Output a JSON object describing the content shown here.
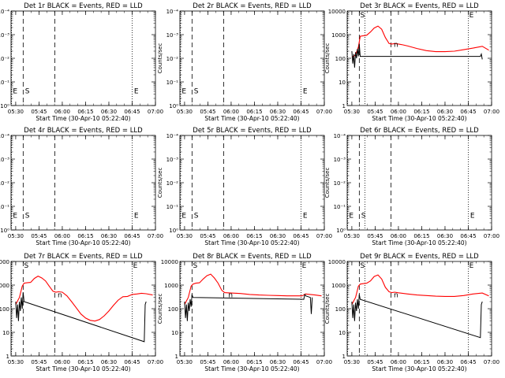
{
  "figure": {
    "x_axis_title": "Start Time (30-Apr-10 05:22:40)",
    "y_axis_title": "Counts/sec"
  },
  "colors": {
    "events": "#000000",
    "lld": "#ff0000",
    "background": "#ffffff",
    "axes": "#000000"
  },
  "chart_data": [
    {
      "type": "line",
      "title": "Det 1r BLACK = Events, RED = LLD",
      "xlabel": "Start Time (30-Apr-10 05:22:40)",
      "ylabel": "Counts/sec",
      "xlim": [
        5.45,
        7.0
      ],
      "ylim": [
        1,
        0.0001
      ],
      "yscale": "log",
      "x_ticks": [
        "05:30",
        "05:45",
        "06:00",
        "06:15",
        "06:30",
        "06:45",
        "07:00"
      ],
      "y_ticks": [
        "10⁰",
        "10⁻¹",
        "10⁻²",
        "10⁻³",
        "10⁻⁴"
      ],
      "vlines": [
        {
          "x": 5.58,
          "style": "dashed"
        },
        {
          "x": 5.92,
          "style": "dashed"
        },
        {
          "x": 6.75,
          "style": "dotted"
        },
        {
          "x": 5.455,
          "style": "dotted"
        }
      ],
      "markers": [
        {
          "label": "E",
          "x": 5.47,
          "y": 0.3
        },
        {
          "label": "S",
          "x": 5.6,
          "y": 0.3
        },
        {
          "label": "E",
          "x": 6.77,
          "y": 0.3
        }
      ],
      "series": []
    },
    {
      "type": "line",
      "title": "Det 2r BLACK = Events, RED = LLD",
      "xlabel": "Start Time (30-Apr-10 05:22:40)",
      "ylabel": "Counts/sec",
      "xlim": [
        5.45,
        7.0
      ],
      "ylim": [
        1,
        0.0001
      ],
      "yscale": "log",
      "x_ticks": [
        "05:30",
        "05:45",
        "06:00",
        "06:15",
        "06:30",
        "06:45",
        "07:00"
      ],
      "y_ticks": [
        "10⁰",
        "10⁻¹",
        "10⁻²",
        "10⁻³",
        "10⁻⁴"
      ],
      "vlines": [
        {
          "x": 5.58,
          "style": "dashed"
        },
        {
          "x": 5.92,
          "style": "dashed"
        },
        {
          "x": 6.75,
          "style": "dotted"
        },
        {
          "x": 5.455,
          "style": "dotted"
        }
      ],
      "markers": [
        {
          "label": "E",
          "x": 5.47,
          "y": 0.3
        },
        {
          "label": "S",
          "x": 5.6,
          "y": 0.3
        },
        {
          "label": "E",
          "x": 6.77,
          "y": 0.3
        }
      ],
      "series": []
    },
    {
      "type": "line",
      "title": "Det 3r BLACK = Events, RED = LLD",
      "xlabel": "Start Time (30-Apr-10 05:22:40)",
      "ylabel": "Counts/sec",
      "xlim": [
        5.45,
        7.0
      ],
      "ylim": [
        1,
        10000
      ],
      "yscale": "log",
      "x_ticks": [
        "05:30",
        "05:45",
        "06:00",
        "06:15",
        "06:30",
        "06:45",
        "07:00"
      ],
      "y_ticks": [
        "1",
        "10",
        "100",
        "1000",
        "10000"
      ],
      "vlines": [
        {
          "x": 5.58,
          "style": "dashed"
        },
        {
          "x": 5.92,
          "style": "dashed"
        },
        {
          "x": 6.75,
          "style": "dotted"
        },
        {
          "x": 5.455,
          "style": "dotted"
        },
        {
          "x": 5.64,
          "style": "dotted"
        }
      ],
      "markers": [
        {
          "label": "S",
          "x": 5.59,
          "y": 8000
        },
        {
          "label": "E",
          "x": 6.76,
          "y": 8000
        },
        {
          "label": "n",
          "x": 5.95,
          "y": 300
        }
      ],
      "series": [
        {
          "name": "LLD",
          "color": "lld",
          "x": [
            5.5,
            5.54,
            5.57,
            5.59,
            5.62,
            5.66,
            5.7,
            5.74,
            5.78,
            5.82,
            5.86,
            5.9,
            5.93,
            5.96,
            6.0,
            6.05,
            6.1,
            6.2,
            6.3,
            6.4,
            6.5,
            6.6,
            6.7,
            6.8,
            6.9,
            6.97
          ],
          "values": [
            110,
            140,
            300,
            850,
            900,
            950,
            1300,
            1900,
            2300,
            1700,
            750,
            420,
            400,
            420,
            400,
            370,
            330,
            260,
            210,
            190,
            190,
            200,
            230,
            270,
            320,
            220
          ]
        },
        {
          "name": "Events",
          "color": "events",
          "x": [
            5.5,
            5.51,
            5.52,
            5.53,
            5.54,
            5.55,
            5.56,
            5.57,
            5.58,
            5.59,
            6.88,
            6.89,
            6.9
          ],
          "values": [
            200,
            60,
            150,
            40,
            180,
            100,
            250,
            120,
            400,
            120,
            120,
            150,
            90
          ]
        }
      ]
    },
    {
      "type": "line",
      "title": "Det 4r BLACK = Events, RED = LLD",
      "xlabel": "Start Time (30-Apr-10 05:22:40)",
      "ylabel": "Counts/sec",
      "xlim": [
        5.45,
        7.0
      ],
      "ylim": [
        1,
        0.0001
      ],
      "yscale": "log",
      "x_ticks": [
        "05:30",
        "05:45",
        "06:00",
        "06:15",
        "06:30",
        "06:45",
        "07:00"
      ],
      "y_ticks": [
        "10⁰",
        "10⁻¹",
        "10⁻²",
        "10⁻³",
        "10⁻⁴"
      ],
      "vlines": [
        {
          "x": 5.58,
          "style": "dashed"
        },
        {
          "x": 5.92,
          "style": "dashed"
        },
        {
          "x": 6.75,
          "style": "dotted"
        },
        {
          "x": 5.455,
          "style": "dotted"
        }
      ],
      "markers": [
        {
          "label": "E",
          "x": 5.47,
          "y": 0.3
        },
        {
          "label": "S",
          "x": 5.6,
          "y": 0.3
        },
        {
          "label": "E",
          "x": 6.77,
          "y": 0.3
        }
      ],
      "series": []
    },
    {
      "type": "line",
      "title": "Det 5r BLACK = Events, RED = LLD",
      "xlabel": "Start Time (30-Apr-10 05:22:40)",
      "ylabel": "Counts/sec",
      "xlim": [
        5.45,
        7.0
      ],
      "ylim": [
        1,
        0.0001
      ],
      "yscale": "log",
      "x_ticks": [
        "05:30",
        "05:45",
        "06:00",
        "06:15",
        "06:30",
        "06:45",
        "07:00"
      ],
      "y_ticks": [
        "10⁰",
        "10⁻¹",
        "10⁻²",
        "10⁻³",
        "10⁻⁴"
      ],
      "vlines": [
        {
          "x": 5.58,
          "style": "dashed"
        },
        {
          "x": 5.92,
          "style": "dashed"
        },
        {
          "x": 6.75,
          "style": "dotted"
        },
        {
          "x": 5.455,
          "style": "dotted"
        }
      ],
      "markers": [
        {
          "label": "E",
          "x": 5.47,
          "y": 0.3
        },
        {
          "label": "S",
          "x": 5.6,
          "y": 0.3
        },
        {
          "label": "E",
          "x": 6.77,
          "y": 0.3
        }
      ],
      "series": []
    },
    {
      "type": "line",
      "title": "Det 6r BLACK = Events, RED = LLD",
      "xlabel": "Start Time (30-Apr-10 05:22:40)",
      "ylabel": "Counts/sec",
      "xlim": [
        5.45,
        7.0
      ],
      "ylim": [
        1,
        0.0001
      ],
      "yscale": "log",
      "x_ticks": [
        "05:30",
        "05:45",
        "06:00",
        "06:15",
        "06:30",
        "06:45",
        "07:00"
      ],
      "y_ticks": [
        "10⁰",
        "10⁻¹",
        "10⁻²",
        "10⁻³",
        "10⁻⁴"
      ],
      "vlines": [
        {
          "x": 5.58,
          "style": "dashed"
        },
        {
          "x": 5.92,
          "style": "dashed"
        },
        {
          "x": 6.75,
          "style": "dotted"
        },
        {
          "x": 5.455,
          "style": "dotted"
        },
        {
          "x": 5.64,
          "style": "dotted"
        }
      ],
      "markers": [
        {
          "label": "E",
          "x": 5.47,
          "y": 0.3
        },
        {
          "label": "S",
          "x": 5.6,
          "y": 0.3
        },
        {
          "label": "E",
          "x": 6.77,
          "y": 0.3
        }
      ],
      "series": []
    },
    {
      "type": "line",
      "title": "Det 7r BLACK = Events, RED = LLD",
      "xlabel": "Start Time (30-Apr-10 05:22:40)",
      "ylabel": "Counts/sec",
      "xlim": [
        5.45,
        7.0
      ],
      "ylim": [
        1,
        10000
      ],
      "yscale": "log",
      "x_ticks": [
        "05:30",
        "05:45",
        "06:00",
        "06:15",
        "06:30",
        "06:45",
        "07:00"
      ],
      "y_ticks": [
        "1",
        "10",
        "100",
        "1000",
        "10000"
      ],
      "vlines": [
        {
          "x": 5.58,
          "style": "dashed"
        },
        {
          "x": 5.92,
          "style": "dashed"
        },
        {
          "x": 6.75,
          "style": "dotted"
        },
        {
          "x": 5.455,
          "style": "dotted"
        }
      ],
      "markers": [
        {
          "label": "S",
          "x": 5.59,
          "y": 8000
        },
        {
          "label": "E",
          "x": 6.76,
          "y": 8000
        },
        {
          "label": "n",
          "x": 5.95,
          "y": 300
        }
      ],
      "series": [
        {
          "name": "LLD",
          "color": "lld",
          "x": [
            5.5,
            5.54,
            5.57,
            5.59,
            5.62,
            5.66,
            5.7,
            5.74,
            5.78,
            5.82,
            5.86,
            5.9,
            5.93,
            5.96,
            6.0,
            6.05,
            6.1,
            6.15,
            6.2,
            6.25,
            6.3,
            6.35,
            6.4,
            6.45,
            6.5,
            6.55,
            6.6,
            6.65,
            6.7,
            6.75,
            6.8,
            6.85,
            6.9,
            6.97
          ],
          "values": [
            150,
            300,
            900,
            1200,
            1250,
            1300,
            1900,
            2400,
            2000,
            1500,
            900,
            550,
            500,
            520,
            500,
            350,
            200,
            110,
            60,
            40,
            32,
            30,
            35,
            50,
            80,
            140,
            230,
            320,
            330,
            400,
            420,
            450,
            430,
            380
          ]
        },
        {
          "name": "Events",
          "color": "events",
          "x": [
            5.5,
            5.51,
            5.52,
            5.53,
            5.54,
            5.55,
            5.56,
            5.57,
            5.58,
            5.59,
            6.88,
            6.89,
            6.9
          ],
          "values": [
            200,
            40,
            150,
            30,
            200,
            80,
            300,
            100,
            500,
            200,
            4,
            150,
            200
          ]
        }
      ]
    },
    {
      "type": "line",
      "title": "Det 8r BLACK = Events, RED = LLD",
      "xlabel": "Start Time (30-Apr-10 05:22:40)",
      "ylabel": "Counts/sec",
      "xlim": [
        5.45,
        7.0
      ],
      "ylim": [
        1,
        10000
      ],
      "yscale": "log",
      "x_ticks": [
        "05:30",
        "05:45",
        "06:00",
        "06:15",
        "06:30",
        "06:45",
        "07:00"
      ],
      "y_ticks": [
        "1",
        "10",
        "100",
        "1000",
        "10000"
      ],
      "vlines": [
        {
          "x": 5.58,
          "style": "dashed"
        },
        {
          "x": 5.92,
          "style": "dashed"
        },
        {
          "x": 6.75,
          "style": "dotted"
        },
        {
          "x": 5.455,
          "style": "dotted"
        }
      ],
      "markers": [
        {
          "label": "S",
          "x": 5.59,
          "y": 8000
        },
        {
          "label": "E",
          "x": 6.76,
          "y": 8000
        },
        {
          "label": "n",
          "x": 5.97,
          "y": 300
        }
      ],
      "series": [
        {
          "name": "LLD",
          "color": "lld",
          "x": [
            5.5,
            5.54,
            5.57,
            5.59,
            5.62,
            5.66,
            5.7,
            5.74,
            5.78,
            5.82,
            5.86,
            5.9,
            5.93,
            5.96,
            6.0,
            6.1,
            6.2,
            6.3,
            6.4,
            6.5,
            6.6,
            6.7,
            6.76,
            6.8,
            6.85,
            6.9,
            6.97
          ],
          "values": [
            150,
            300,
            900,
            1100,
            1200,
            1250,
            1800,
            2500,
            2900,
            2000,
            1200,
            600,
            480,
            470,
            460,
            440,
            400,
            380,
            370,
            360,
            350,
            350,
            350,
            420,
            400,
            380,
            350
          ]
        },
        {
          "name": "Events",
          "color": "events",
          "x": [
            5.5,
            5.51,
            5.52,
            5.53,
            5.54,
            5.55,
            5.56,
            5.57,
            5.58,
            5.59,
            6.78,
            6.79,
            6.8,
            6.85,
            6.86,
            6.87
          ],
          "values": [
            200,
            40,
            150,
            30,
            180,
            80,
            250,
            120,
            400,
            300,
            250,
            400,
            350,
            300,
            60,
            300
          ]
        }
      ]
    },
    {
      "type": "line",
      "title": "Det 9r BLACK = Events, RED = LLD",
      "xlabel": "Start Time (30-Apr-10 05:22:40)",
      "ylabel": "Counts/sec",
      "xlim": [
        5.45,
        7.0
      ],
      "ylim": [
        1,
        10000
      ],
      "yscale": "log",
      "x_ticks": [
        "05:30",
        "05:45",
        "06:00",
        "06:15",
        "06:30",
        "06:45",
        "07:00"
      ],
      "y_ticks": [
        "1",
        "10",
        "100",
        "1000",
        "10000"
      ],
      "vlines": [
        {
          "x": 5.58,
          "style": "dashed"
        },
        {
          "x": 5.92,
          "style": "dashed"
        },
        {
          "x": 6.75,
          "style": "dotted"
        },
        {
          "x": 5.455,
          "style": "dotted"
        },
        {
          "x": 5.64,
          "style": "dotted"
        }
      ],
      "markers": [
        {
          "label": "S",
          "x": 5.59,
          "y": 8000
        },
        {
          "label": "E",
          "x": 6.76,
          "y": 8000
        },
        {
          "label": "n",
          "x": 5.95,
          "y": 300
        }
      ],
      "series": [
        {
          "name": "LLD",
          "color": "lld",
          "x": [
            5.5,
            5.54,
            5.57,
            5.59,
            5.62,
            5.66,
            5.7,
            5.74,
            5.78,
            5.82,
            5.86,
            5.9,
            5.93,
            5.96,
            6.0,
            6.1,
            6.2,
            6.3,
            6.4,
            6.5,
            6.6,
            6.7,
            6.8,
            6.9,
            6.97
          ],
          "values": [
            150,
            300,
            900,
            1100,
            1150,
            1200,
            1500,
            2300,
            2700,
            1800,
            800,
            520,
            480,
            500,
            470,
            420,
            380,
            360,
            340,
            330,
            330,
            360,
            420,
            460,
            350
          ]
        },
        {
          "name": "Events",
          "color": "events",
          "x": [
            5.5,
            5.51,
            5.52,
            5.53,
            5.54,
            5.55,
            5.56,
            5.57,
            5.58,
            5.59,
            6.88,
            6.89,
            6.9
          ],
          "values": [
            200,
            40,
            150,
            30,
            180,
            80,
            250,
            100,
            400,
            250,
            6,
            150,
            200
          ]
        }
      ]
    }
  ]
}
